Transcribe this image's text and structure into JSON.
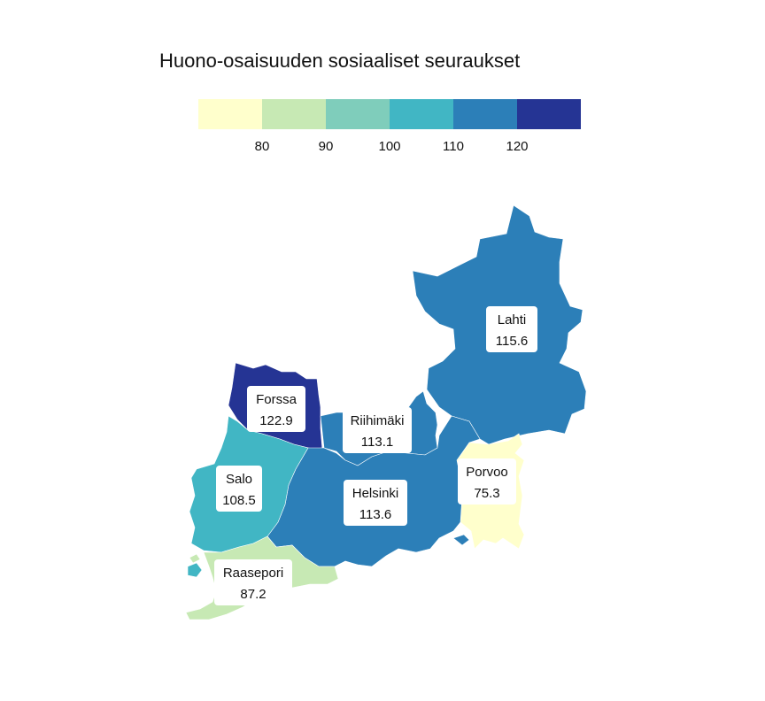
{
  "title": "Huono-osaisuuden sosiaaliset seuraukset",
  "legend": {
    "colors": [
      "#ffffcc",
      "#c7e9b4",
      "#7fcdbb",
      "#41b6c4",
      "#2c7fb8",
      "#253494"
    ],
    "ticks": [
      "80",
      "90",
      "100",
      "110",
      "120"
    ]
  },
  "regions": [
    {
      "name": "Lahti",
      "value": "115.6",
      "color": "#2c7fb8"
    },
    {
      "name": "Forssa",
      "value": "122.9",
      "color": "#253494"
    },
    {
      "name": "Riihimäki",
      "value": "113.1",
      "color": "#2c7fb8"
    },
    {
      "name": "Salo",
      "value": "108.5",
      "color": "#41b6c4"
    },
    {
      "name": "Helsinki",
      "value": "113.6",
      "color": "#2c7fb8"
    },
    {
      "name": "Porvoo",
      "value": "75.3",
      "color": "#ffffcc"
    },
    {
      "name": "Raasepori",
      "value": "87.2",
      "color": "#c7e9b4"
    }
  ]
}
